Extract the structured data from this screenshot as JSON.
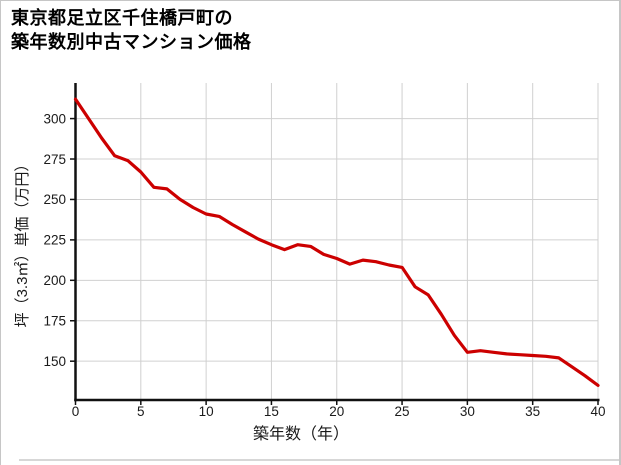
{
  "title": {
    "line1": "東京都足立区千住橋戸町の",
    "line2": "築年数別中古マンション価格"
  },
  "chart_data": {
    "type": "line",
    "title": "東京都足立区千住橋戸町の築年数別中古マンション価格",
    "xlabel": "築年数（年）",
    "ylabel": "坪（3.3㎡）単価（万円）",
    "x": [
      0,
      1,
      2,
      3,
      4,
      5,
      6,
      7,
      8,
      9,
      10,
      11,
      12,
      13,
      14,
      15,
      16,
      17,
      18,
      19,
      20,
      21,
      22,
      23,
      24,
      25,
      26,
      27,
      28,
      29,
      30,
      31,
      32,
      33,
      34,
      35,
      36,
      37,
      38,
      39,
      40
    ],
    "values": [
      312,
      300,
      288,
      277,
      274,
      267,
      257.5,
      256.5,
      250,
      245,
      241,
      239.5,
      234.5,
      230,
      225.5,
      222,
      219,
      222,
      221,
      216,
      213.5,
      210,
      212.5,
      211.5,
      209.5,
      208,
      196,
      191,
      179,
      166,
      155.5,
      156.5,
      155.5,
      154.5,
      154,
      153.5,
      153,
      152,
      146.5,
      141,
      135
    ],
    "xticks": [
      0,
      5,
      10,
      15,
      20,
      25,
      30,
      35,
      40
    ],
    "yticks": [
      150,
      175,
      200,
      225,
      250,
      275,
      300
    ],
    "xlim": [
      0,
      40
    ],
    "ylim": [
      126,
      322
    ],
    "grid": true,
    "legend": "none",
    "series_name": "坪単価",
    "line_color": "#cc0000",
    "grid_color": "#d0d0d0",
    "axis_color": "#111111",
    "text_color": "#1a1a1a"
  }
}
